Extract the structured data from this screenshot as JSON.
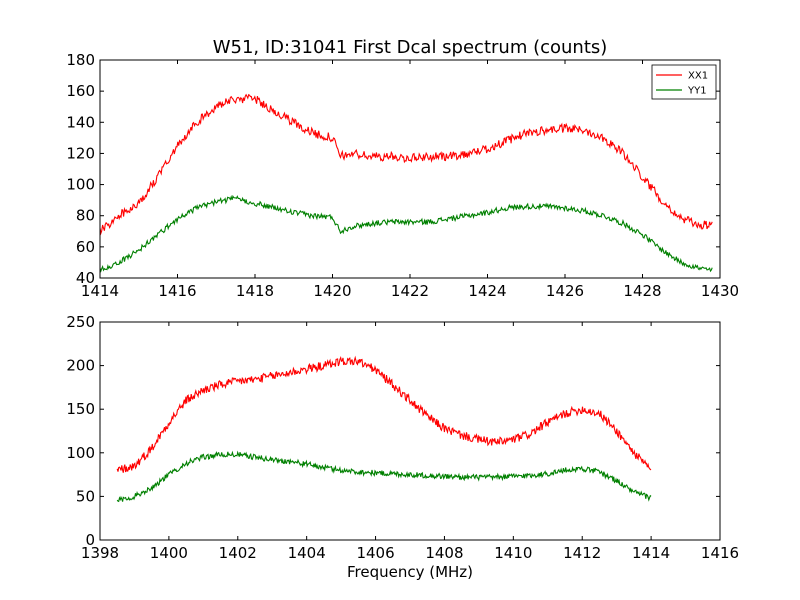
{
  "chart_data": [
    {
      "type": "line",
      "title": "W51, ID:31041 First Dcal spectrum (counts)",
      "xlabel": "",
      "ylabel": "",
      "xlim": [
        1414,
        1430
      ],
      "ylim": [
        40,
        180
      ],
      "xticks": [
        "1414",
        "1416",
        "1418",
        "1420",
        "1422",
        "1424",
        "1426",
        "1428",
        "1430"
      ],
      "yticks": [
        "40",
        "60",
        "80",
        "100",
        "120",
        "140",
        "160",
        "180"
      ],
      "legend_position": "top-right",
      "grid": false,
      "series": [
        {
          "name": "XX1",
          "color": "#ff0000",
          "x": [
            1414.0,
            1414.5,
            1415.0,
            1415.5,
            1416.0,
            1416.5,
            1417.0,
            1417.5,
            1418.0,
            1418.5,
            1419.0,
            1419.5,
            1420.0,
            1420.2,
            1420.5,
            1421.0,
            1421.5,
            1422.0,
            1422.5,
            1423.0,
            1423.5,
            1424.0,
            1424.5,
            1425.0,
            1425.5,
            1426.0,
            1426.5,
            1427.0,
            1427.5,
            1428.0,
            1428.5,
            1429.0,
            1429.5,
            1429.8
          ],
          "y": [
            70,
            80,
            88,
            105,
            125,
            140,
            150,
            155,
            155,
            147,
            140,
            133,
            130,
            118,
            120,
            118,
            118,
            117,
            118,
            118,
            120,
            123,
            128,
            133,
            135,
            136,
            135,
            130,
            120,
            105,
            90,
            78,
            74,
            74
          ]
        },
        {
          "name": "YY1",
          "color": "#008000",
          "x": [
            1414.0,
            1414.5,
            1415.0,
            1415.5,
            1416.0,
            1416.5,
            1417.0,
            1417.5,
            1418.0,
            1418.5,
            1419.0,
            1419.5,
            1420.0,
            1420.2,
            1420.5,
            1421.0,
            1421.5,
            1422.0,
            1422.5,
            1423.0,
            1423.5,
            1424.0,
            1424.5,
            1425.0,
            1425.5,
            1426.0,
            1426.5,
            1427.0,
            1427.5,
            1428.0,
            1428.5,
            1429.0,
            1429.5,
            1429.8
          ],
          "y": [
            45,
            50,
            58,
            68,
            78,
            85,
            89,
            91,
            88,
            85,
            82,
            80,
            79,
            70,
            73,
            75,
            76,
            76,
            76,
            78,
            80,
            82,
            85,
            86,
            86,
            85,
            83,
            80,
            75,
            68,
            58,
            50,
            46,
            45
          ]
        }
      ]
    },
    {
      "type": "line",
      "title": "",
      "xlabel": "Frequency (MHz)",
      "ylabel": "",
      "xlim": [
        1398,
        1416
      ],
      "ylim": [
        0,
        250
      ],
      "xticks": [
        "1398",
        "1400",
        "1402",
        "1404",
        "1406",
        "1408",
        "1410",
        "1412",
        "1414",
        "1416"
      ],
      "yticks": [
        "0",
        "50",
        "100",
        "150",
        "200",
        "250"
      ],
      "grid": false,
      "series": [
        {
          "color": "#ff0000",
          "x": [
            1398.5,
            1399.0,
            1399.5,
            1400.0,
            1400.5,
            1401.0,
            1401.5,
            1402.0,
            1402.5,
            1403.0,
            1403.5,
            1404.0,
            1404.5,
            1405.0,
            1405.5,
            1406.0,
            1406.5,
            1407.0,
            1407.5,
            1408.0,
            1408.5,
            1409.0,
            1409.5,
            1410.0,
            1410.5,
            1411.0,
            1411.5,
            1412.0,
            1412.5,
            1413.0,
            1413.5,
            1414.0
          ],
          "y": [
            80,
            85,
            105,
            135,
            160,
            172,
            178,
            182,
            184,
            188,
            192,
            196,
            200,
            205,
            205,
            195,
            178,
            160,
            142,
            128,
            120,
            115,
            112,
            115,
            122,
            135,
            145,
            150,
            145,
            125,
            100,
            80
          ]
        },
        {
          "color": "#008000",
          "x": [
            1398.5,
            1399.0,
            1399.5,
            1400.0,
            1400.5,
            1401.0,
            1401.5,
            1402.0,
            1402.5,
            1403.0,
            1403.5,
            1404.0,
            1404.5,
            1405.0,
            1405.5,
            1406.0,
            1406.5,
            1407.0,
            1407.5,
            1408.0,
            1408.5,
            1409.0,
            1409.5,
            1410.0,
            1410.5,
            1411.0,
            1411.5,
            1412.0,
            1412.5,
            1413.0,
            1413.5,
            1414.0
          ],
          "y": [
            45,
            50,
            60,
            75,
            88,
            95,
            98,
            98,
            95,
            92,
            90,
            87,
            83,
            80,
            78,
            77,
            76,
            75,
            74,
            73,
            72,
            72,
            72,
            73,
            74,
            76,
            80,
            82,
            78,
            68,
            55,
            48
          ]
        }
      ]
    }
  ]
}
